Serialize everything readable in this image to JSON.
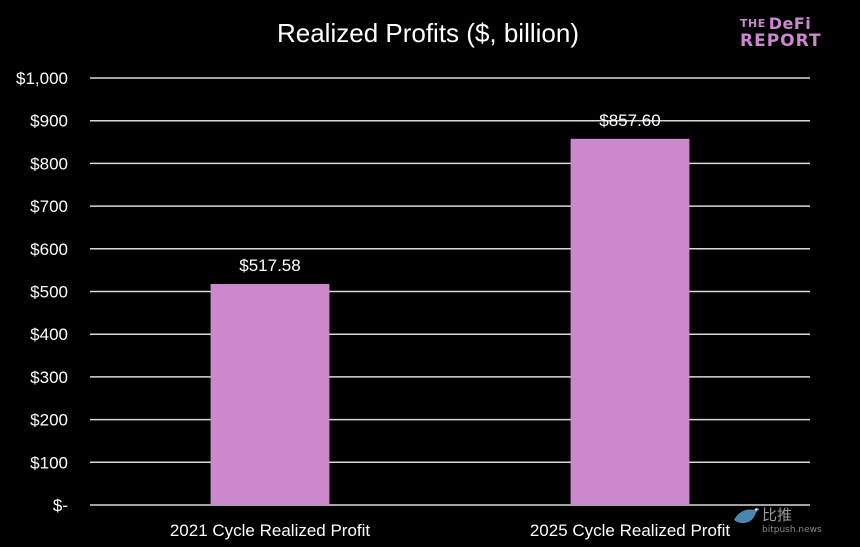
{
  "brand": {
    "logo_line1_small": "THE",
    "logo_line1": "DeFi",
    "logo_line2": "REPORT",
    "logo_color": "#cc88cc"
  },
  "watermark": {
    "icon": "bird-icon",
    "name": "比推",
    "url": "bitpush.news"
  },
  "chart_data": {
    "type": "bar",
    "title": "Realized Profits ($, billion)",
    "categories": [
      "2021 Cycle Realized Profit",
      "2025 Cycle Realized Profit"
    ],
    "values": [
      517.58,
      857.6
    ],
    "data_labels": [
      "$517.58",
      "$857.60"
    ],
    "yticks": [
      0,
      100,
      200,
      300,
      400,
      500,
      600,
      700,
      800,
      900,
      1000
    ],
    "ytick_labels": [
      "$-",
      "$100",
      "$200",
      "$300",
      "$400",
      "$500",
      "$600",
      "$700",
      "$800",
      "$900",
      "$1,000"
    ],
    "ylim": [
      0,
      1000
    ],
    "xlabel": "",
    "ylabel": "",
    "grid": true,
    "legend": "none",
    "bar_color": "#cc88cc",
    "background": "#000000"
  }
}
